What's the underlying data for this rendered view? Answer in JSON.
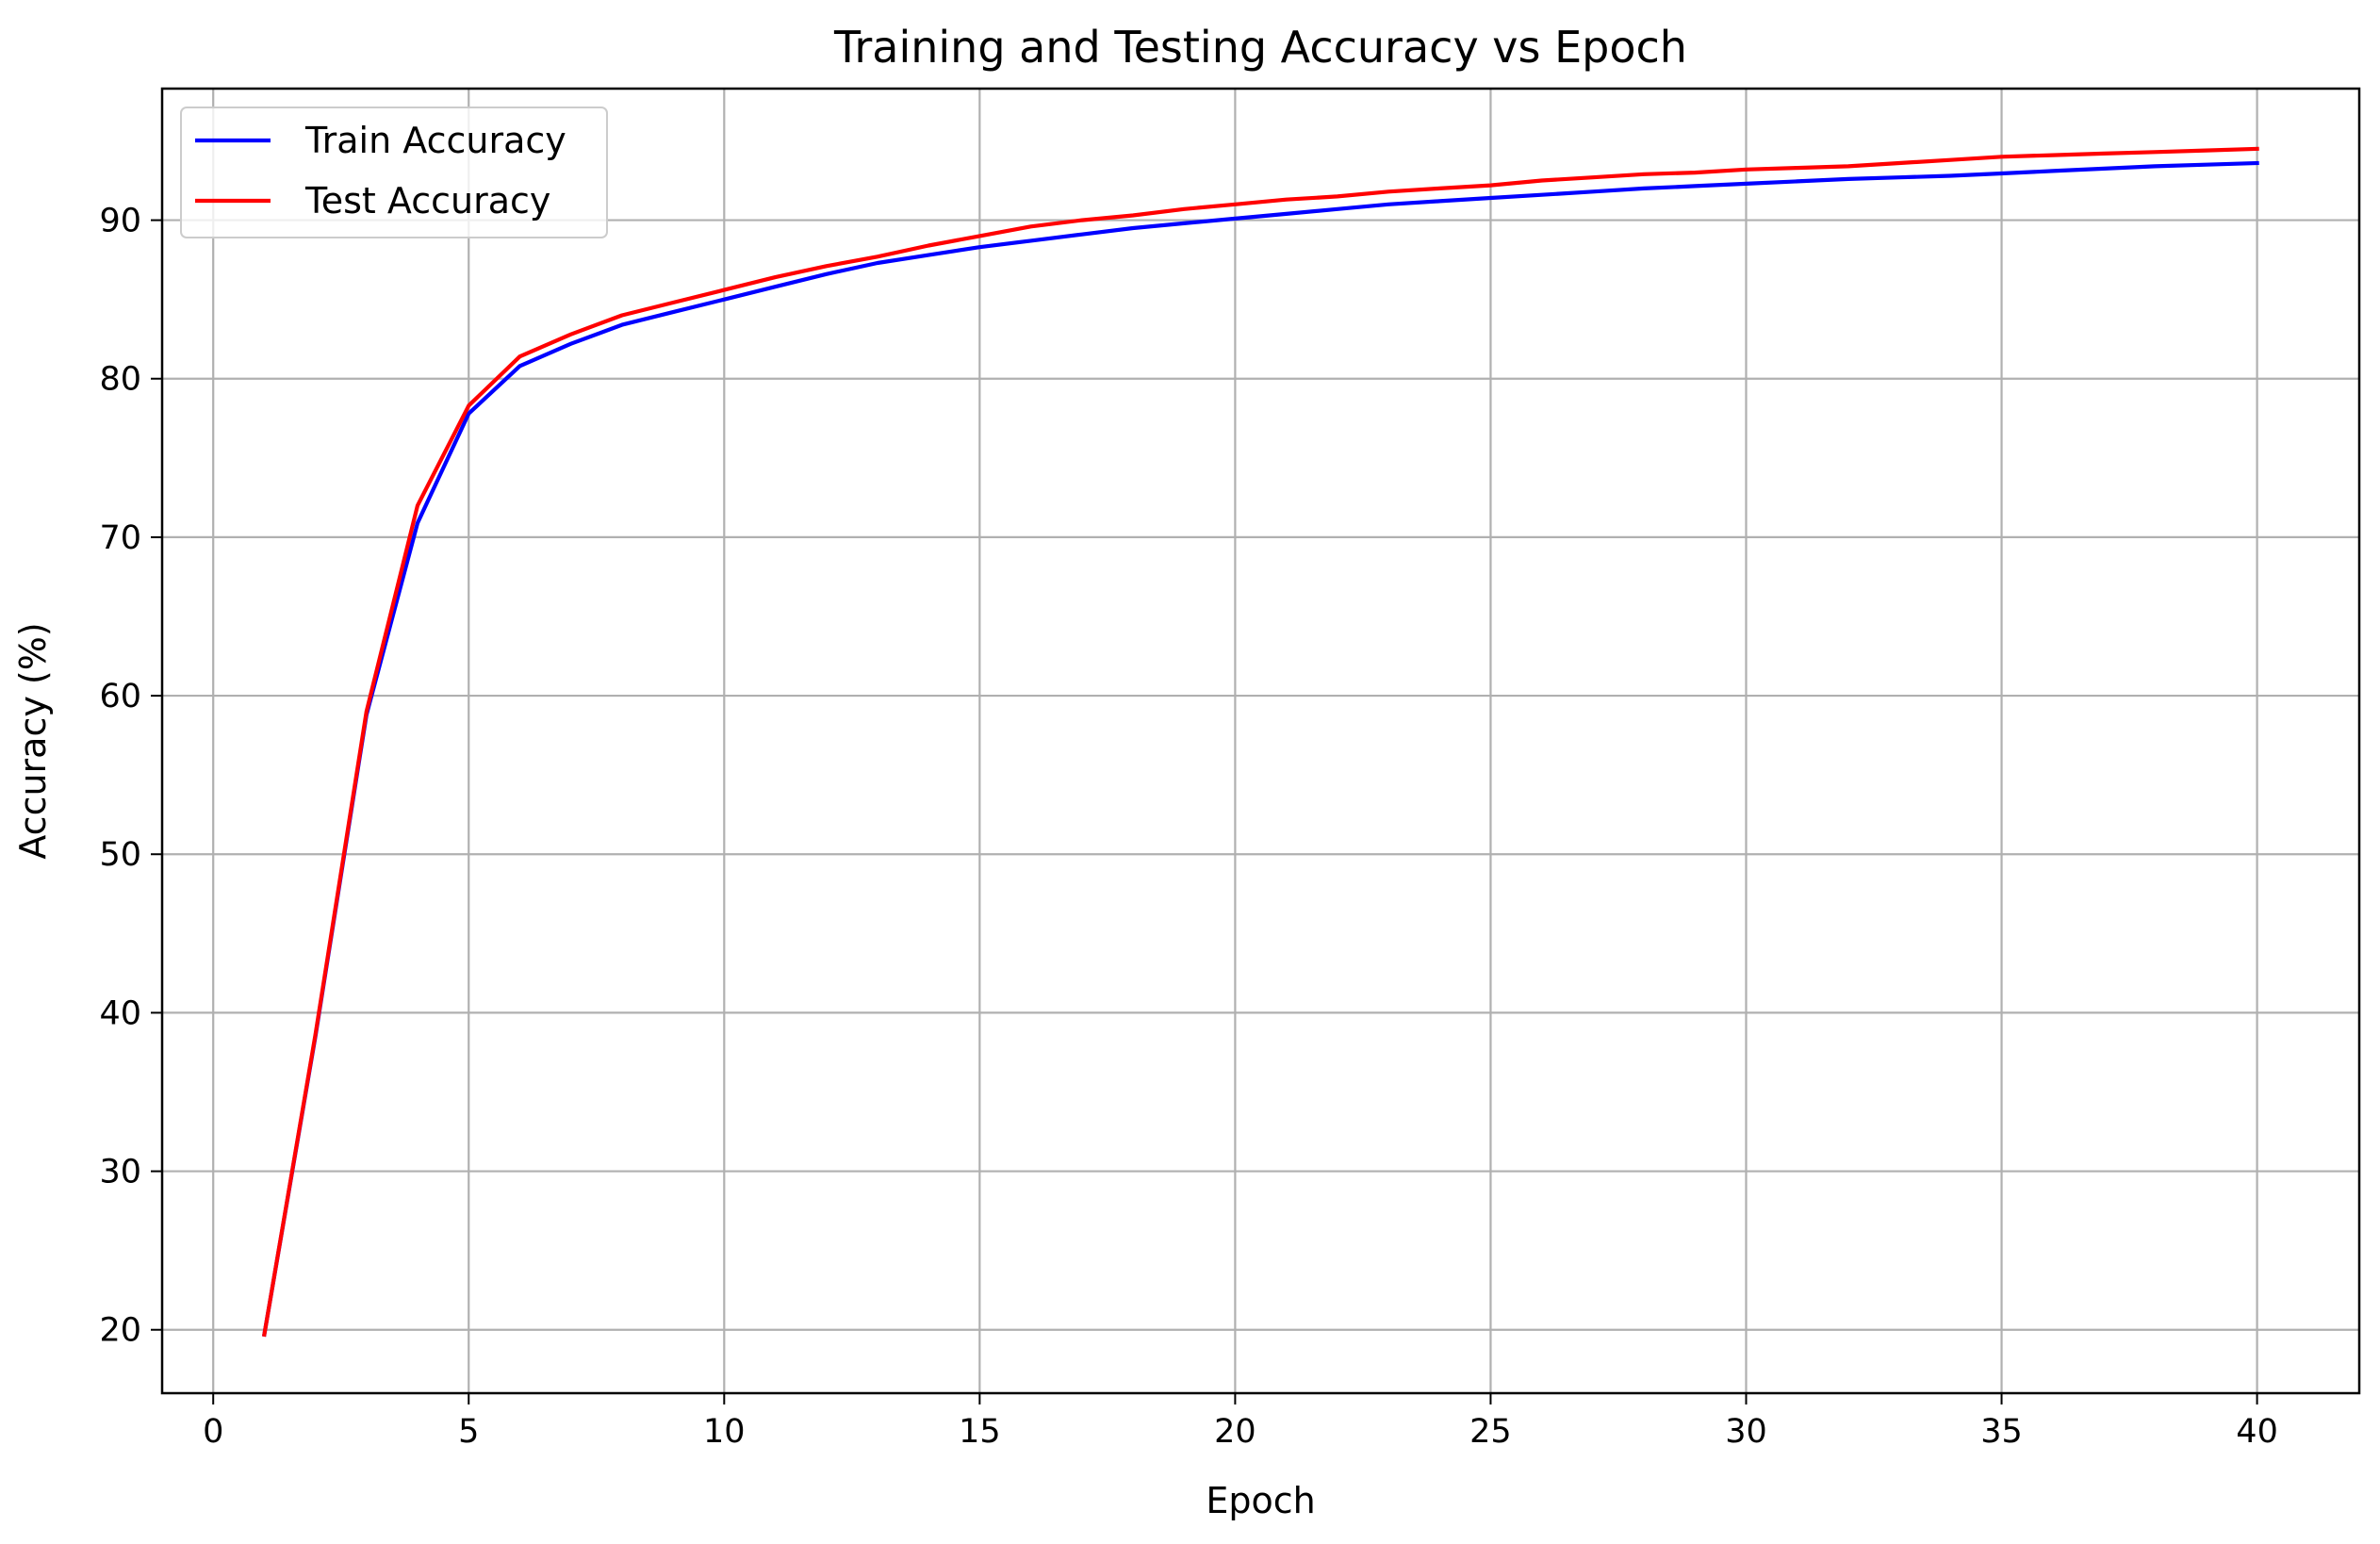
{
  "chart_data": {
    "type": "line",
    "title": "Training and Testing Accuracy vs Epoch",
    "xlabel": "Epoch",
    "ylabel": "Accuracy (%)",
    "xlim": [
      -1,
      42
    ],
    "ylim": [
      16,
      98.3
    ],
    "xticks": [
      0,
      5,
      10,
      15,
      20,
      25,
      30,
      35,
      40
    ],
    "yticks": [
      20,
      30,
      40,
      50,
      60,
      70,
      80,
      90
    ],
    "grid": true,
    "legend_position": "upper-left",
    "x": [
      1,
      2,
      3,
      4,
      5,
      6,
      7,
      8,
      9,
      10,
      11,
      12,
      13,
      14,
      15,
      16,
      17,
      18,
      19,
      20,
      21,
      22,
      23,
      24,
      25,
      26,
      27,
      28,
      29,
      30,
      31,
      32,
      33,
      34,
      35,
      36,
      37,
      38,
      39,
      40
    ],
    "series": [
      {
        "name": "Train Accuracy",
        "color": "#0000ff",
        "values": [
          19.7,
          38.5,
          58.8,
          70.9,
          77.8,
          80.8,
          82.2,
          83.4,
          84.2,
          85.0,
          85.8,
          86.6,
          87.3,
          87.8,
          88.3,
          88.7,
          89.1,
          89.5,
          89.8,
          90.1,
          90.4,
          90.7,
          91.0,
          91.2,
          91.4,
          91.6,
          91.8,
          92.0,
          92.15,
          92.3,
          92.45,
          92.6,
          92.7,
          92.8,
          92.95,
          93.1,
          93.25,
          93.4,
          93.5,
          93.6
        ]
      },
      {
        "name": "Test Accuracy",
        "color": "#ff0000",
        "values": [
          19.7,
          38.6,
          59.0,
          72.0,
          78.3,
          81.4,
          82.8,
          84.0,
          84.8,
          85.6,
          86.4,
          87.1,
          87.7,
          88.4,
          89.0,
          89.6,
          90.0,
          90.3,
          90.7,
          91.0,
          91.3,
          91.5,
          91.8,
          92.0,
          92.2,
          92.5,
          92.7,
          92.9,
          93.0,
          93.2,
          93.3,
          93.4,
          93.6,
          93.8,
          94.0,
          94.1,
          94.2,
          94.3,
          94.4,
          94.5
        ]
      }
    ]
  }
}
